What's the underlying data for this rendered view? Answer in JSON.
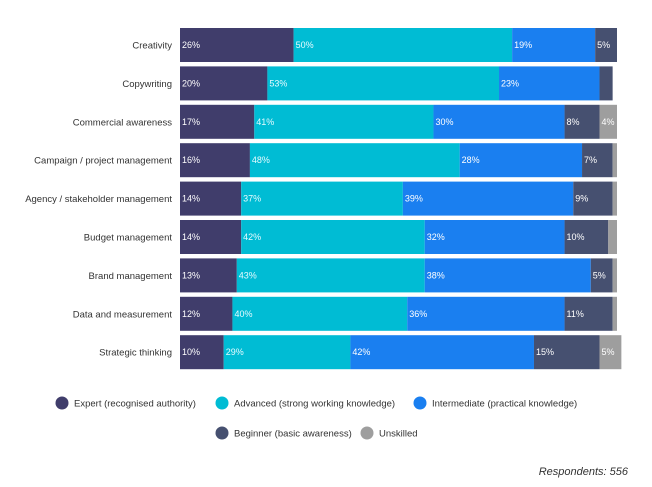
{
  "chart_data": {
    "type": "bar",
    "orientation": "horizontal",
    "stacked": true,
    "categories": [
      "Creativity",
      "Copywriting",
      "Commercial awareness",
      "Campaign / project management",
      "Agency / stakeholder management",
      "Budget management",
      "Brand management",
      "Data and measurement",
      "Strategic thinking"
    ],
    "series": [
      {
        "name": "Expert (recognised authority)",
        "color": "#403d6b",
        "values": [
          26,
          20,
          17,
          16,
          14,
          14,
          13,
          12,
          10
        ]
      },
      {
        "name": "Advanced (strong working knowledge)",
        "color": "#00bcd4",
        "values": [
          50,
          53,
          41,
          48,
          37,
          42,
          43,
          40,
          29
        ]
      },
      {
        "name": "Intermediate (practical knowledge)",
        "color": "#1a7ff0",
        "values": [
          19,
          23,
          30,
          28,
          39,
          32,
          38,
          36,
          42
        ]
      },
      {
        "name": "Beginner (basic awareness)",
        "color": "#465070",
        "values": [
          5,
          3,
          8,
          7,
          9,
          10,
          5,
          11,
          15
        ]
      },
      {
        "name": "Unskilled",
        "color": "#9e9e9e",
        "values": [
          0,
          0,
          4,
          1,
          1,
          2,
          1,
          1,
          5
        ]
      }
    ],
    "data_labels": [
      [
        "26%",
        "50%",
        "19%",
        "5%",
        ""
      ],
      [
        "20%",
        "53%",
        "23%",
        "",
        ""
      ],
      [
        "17%",
        "41%",
        "30%",
        "8%",
        "4%"
      ],
      [
        "16%",
        "48%",
        "28%",
        "7%",
        ""
      ],
      [
        "14%",
        "37%",
        "39%",
        "9%",
        ""
      ],
      [
        "14%",
        "42%",
        "32%",
        "10%",
        ""
      ],
      [
        "13%",
        "43%",
        "38%",
        "5%",
        ""
      ],
      [
        "12%",
        "40%",
        "36%",
        "11%",
        ""
      ],
      [
        "10%",
        "29%",
        "42%",
        "15%",
        "5%"
      ]
    ],
    "label_colors": [
      "#ffffff",
      "#e6fbff",
      "#ffffff",
      "#ffffff",
      "#ffffff"
    ],
    "xlim": [
      0,
      100
    ],
    "legend_position": "bottom"
  },
  "footnote": "Respondents: 556"
}
